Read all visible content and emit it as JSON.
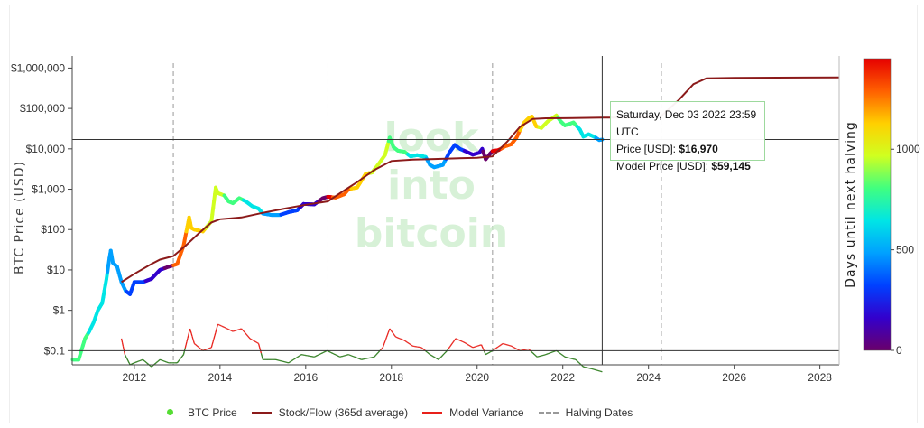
{
  "colors": {
    "btc_scale": [
      "#6a006a",
      "#3300cc",
      "#0040ff",
      "#00a0ff",
      "#00e5e5",
      "#40ff80",
      "#d0ff20",
      "#ffd000",
      "#ff6000",
      "#e60000"
    ],
    "stock_flow": "#8b1a1a",
    "variance_high": "#e8201a",
    "variance_low": "#2e7d1e",
    "halving": "#999999",
    "hline": "#333333",
    "crosshair": "#333333",
    "tooltip_border": "#9dd99d",
    "watermark": "#c9ecc9"
  },
  "watermark": {
    "lines": [
      "look",
      "into",
      "bitcoin"
    ]
  },
  "tooltip": {
    "date": "Saturday, Dec 03 2022 23:59 UTC",
    "price_label": "Price [USD]: ",
    "price_value": "$16,970",
    "model_label": "Model Price [USD]: ",
    "model_value": "$59,145"
  },
  "chart_data": {
    "type": "line",
    "xlim": [
      2010.55,
      2028.45
    ],
    "ylim_log10": [
      -1.35,
      6.3
    ],
    "yscale": "log",
    "ylabel": "BTC Price (USD)",
    "xticks": [
      2012,
      2014,
      2016,
      2018,
      2020,
      2022,
      2024,
      2026,
      2028
    ],
    "yticks": [
      {
        "v": 1000000,
        "label": "$1,000,000"
      },
      {
        "v": 100000,
        "label": "$100,000"
      },
      {
        "v": 10000,
        "label": "$10,000"
      },
      {
        "v": 1000,
        "label": "$1,000"
      },
      {
        "v": 100,
        "label": "$100"
      },
      {
        "v": 10,
        "label": "$10"
      },
      {
        "v": 1,
        "label": "$1"
      },
      {
        "v": 0.1,
        "label": "$0.1"
      }
    ],
    "halving_dates": [
      2012.91,
      2016.52,
      2020.36,
      2024.3
    ],
    "hover_x": 2022.92,
    "horizontal_lines": [
      16970,
      0.1
    ],
    "colorbar": {
      "label": "Days until next halving",
      "min": 0,
      "max": 1450,
      "ticks": [
        0,
        500,
        1000
      ]
    },
    "legend_position": "bottom-center",
    "series": [
      {
        "name": "BTC Price",
        "points": [
          [
            2010.56,
            0.06
          ],
          [
            2010.7,
            0.06
          ],
          [
            2010.85,
            0.2
          ],
          [
            2010.95,
            0.3
          ],
          [
            2011.05,
            0.5
          ],
          [
            2011.15,
            1
          ],
          [
            2011.25,
            1.5
          ],
          [
            2011.35,
            6
          ],
          [
            2011.42,
            20
          ],
          [
            2011.45,
            30
          ],
          [
            2011.5,
            15
          ],
          [
            2011.6,
            12
          ],
          [
            2011.7,
            5
          ],
          [
            2011.8,
            3
          ],
          [
            2011.9,
            2.5
          ],
          [
            2012.0,
            5
          ],
          [
            2012.2,
            5
          ],
          [
            2012.4,
            6
          ],
          [
            2012.6,
            10
          ],
          [
            2012.8,
            12
          ],
          [
            2012.91,
            13
          ],
          [
            2013.0,
            14
          ],
          [
            2013.15,
            40
          ],
          [
            2013.28,
            200
          ],
          [
            2013.33,
            110
          ],
          [
            2013.4,
            100
          ],
          [
            2013.6,
            90
          ],
          [
            2013.8,
            160
          ],
          [
            2013.9,
            1100
          ],
          [
            2013.95,
            800
          ],
          [
            2014.1,
            700
          ],
          [
            2014.2,
            500
          ],
          [
            2014.3,
            450
          ],
          [
            2014.45,
            600
          ],
          [
            2014.6,
            500
          ],
          [
            2014.75,
            380
          ],
          [
            2014.9,
            330
          ],
          [
            2015.0,
            250
          ],
          [
            2015.2,
            230
          ],
          [
            2015.4,
            230
          ],
          [
            2015.6,
            270
          ],
          [
            2015.8,
            300
          ],
          [
            2015.95,
            430
          ],
          [
            2016.2,
            420
          ],
          [
            2016.4,
            600
          ],
          [
            2016.52,
            650
          ],
          [
            2016.7,
            620
          ],
          [
            2016.9,
            750
          ],
          [
            2017.0,
            1000
          ],
          [
            2017.2,
            1100
          ],
          [
            2017.4,
            2400
          ],
          [
            2017.55,
            2600
          ],
          [
            2017.7,
            4200
          ],
          [
            2017.85,
            7000
          ],
          [
            2017.96,
            19000
          ],
          [
            2018.05,
            11000
          ],
          [
            2018.15,
            9000
          ],
          [
            2018.3,
            8500
          ],
          [
            2018.45,
            6500
          ],
          [
            2018.6,
            7000
          ],
          [
            2018.8,
            6300
          ],
          [
            2018.9,
            4000
          ],
          [
            2019.0,
            3500
          ],
          [
            2019.2,
            4000
          ],
          [
            2019.35,
            8000
          ],
          [
            2019.48,
            12500
          ],
          [
            2019.6,
            10000
          ],
          [
            2019.75,
            8500
          ],
          [
            2019.9,
            7200
          ],
          [
            2020.05,
            8000
          ],
          [
            2020.12,
            10000
          ],
          [
            2020.2,
            5500
          ],
          [
            2020.3,
            7500
          ],
          [
            2020.36,
            8800
          ],
          [
            2020.5,
            9300
          ],
          [
            2020.65,
            11500
          ],
          [
            2020.8,
            13000
          ],
          [
            2020.92,
            19000
          ],
          [
            2021.0,
            29000
          ],
          [
            2021.1,
            45000
          ],
          [
            2021.2,
            57000
          ],
          [
            2021.28,
            63000
          ],
          [
            2021.38,
            36000
          ],
          [
            2021.5,
            33000
          ],
          [
            2021.65,
            48000
          ],
          [
            2021.85,
            67000
          ],
          [
            2021.95,
            48000
          ],
          [
            2022.05,
            38000
          ],
          [
            2022.25,
            45000
          ],
          [
            2022.4,
            30000
          ],
          [
            2022.48,
            20000
          ],
          [
            2022.6,
            23000
          ],
          [
            2022.75,
            19500
          ],
          [
            2022.85,
            16500
          ],
          [
            2022.92,
            16970
          ]
        ]
      },
      {
        "name": "Stock/Flow (365d average)",
        "points": [
          [
            2011.7,
            5
          ],
          [
            2012.0,
            8
          ],
          [
            2012.4,
            14
          ],
          [
            2012.6,
            18
          ],
          [
            2012.91,
            22
          ],
          [
            2013.2,
            40
          ],
          [
            2013.5,
            80
          ],
          [
            2013.8,
            150
          ],
          [
            2014.0,
            180
          ],
          [
            2014.5,
            200
          ],
          [
            2015.0,
            260
          ],
          [
            2015.5,
            330
          ],
          [
            2016.0,
            410
          ],
          [
            2016.52,
            500
          ],
          [
            2016.8,
            800
          ],
          [
            2017.2,
            1500
          ],
          [
            2017.6,
            3000
          ],
          [
            2018.0,
            5000
          ],
          [
            2018.5,
            5400
          ],
          [
            2019.0,
            5600
          ],
          [
            2019.5,
            5800
          ],
          [
            2020.0,
            6000
          ],
          [
            2020.36,
            6500
          ],
          [
            2020.7,
            15000
          ],
          [
            2021.0,
            35000
          ],
          [
            2021.3,
            55000
          ],
          [
            2021.6,
            57000
          ],
          [
            2022.0,
            57500
          ],
          [
            2022.92,
            59145
          ],
          [
            2023.5,
            59500
          ],
          [
            2024.0,
            60000
          ],
          [
            2024.3,
            65000
          ],
          [
            2024.7,
            160000
          ],
          [
            2025.05,
            400000
          ],
          [
            2025.35,
            560000
          ],
          [
            2026.0,
            570000
          ],
          [
            2027.0,
            580000
          ],
          [
            2028.45,
            590000
          ]
        ]
      },
      {
        "name": "Model Variance",
        "points": [
          [
            2011.7,
            0.2
          ],
          [
            2011.78,
            0.08
          ],
          [
            2011.9,
            0.045
          ],
          [
            2012.0,
            0.05
          ],
          [
            2012.2,
            0.06
          ],
          [
            2012.4,
            0.04
          ],
          [
            2012.6,
            0.06
          ],
          [
            2012.8,
            0.05
          ],
          [
            2013.0,
            0.05
          ],
          [
            2013.15,
            0.08
          ],
          [
            2013.3,
            0.35
          ],
          [
            2013.4,
            0.15
          ],
          [
            2013.6,
            0.1
          ],
          [
            2013.8,
            0.12
          ],
          [
            2013.95,
            0.45
          ],
          [
            2014.1,
            0.38
          ],
          [
            2014.3,
            0.3
          ],
          [
            2014.5,
            0.35
          ],
          [
            2014.7,
            0.2
          ],
          [
            2014.9,
            0.15
          ],
          [
            2015.0,
            0.06
          ],
          [
            2015.3,
            0.06
          ],
          [
            2015.6,
            0.05
          ],
          [
            2015.9,
            0.08
          ],
          [
            2016.2,
            0.07
          ],
          [
            2016.5,
            0.1
          ],
          [
            2016.8,
            0.07
          ],
          [
            2017.0,
            0.08
          ],
          [
            2017.3,
            0.06
          ],
          [
            2017.6,
            0.07
          ],
          [
            2017.8,
            0.12
          ],
          [
            2017.96,
            0.35
          ],
          [
            2018.1,
            0.22
          ],
          [
            2018.3,
            0.18
          ],
          [
            2018.5,
            0.13
          ],
          [
            2018.7,
            0.12
          ],
          [
            2018.9,
            0.08
          ],
          [
            2019.1,
            0.06
          ],
          [
            2019.3,
            0.1
          ],
          [
            2019.5,
            0.2
          ],
          [
            2019.7,
            0.16
          ],
          [
            2019.9,
            0.12
          ],
          [
            2020.1,
            0.14
          ],
          [
            2020.2,
            0.08
          ],
          [
            2020.36,
            0.1
          ],
          [
            2020.6,
            0.15
          ],
          [
            2020.8,
            0.13
          ],
          [
            2021.0,
            0.1
          ],
          [
            2021.2,
            0.11
          ],
          [
            2021.4,
            0.07
          ],
          [
            2021.6,
            0.08
          ],
          [
            2021.85,
            0.1
          ],
          [
            2022.05,
            0.07
          ],
          [
            2022.3,
            0.06
          ],
          [
            2022.48,
            0.04
          ],
          [
            2022.7,
            0.035
          ],
          [
            2022.92,
            0.03
          ]
        ]
      }
    ]
  },
  "legend": {
    "btc_price": "BTC Price",
    "stock_flow": "Stock/Flow (365d average)",
    "model_variance": "Model Variance",
    "halving_dates": "Halving Dates"
  }
}
